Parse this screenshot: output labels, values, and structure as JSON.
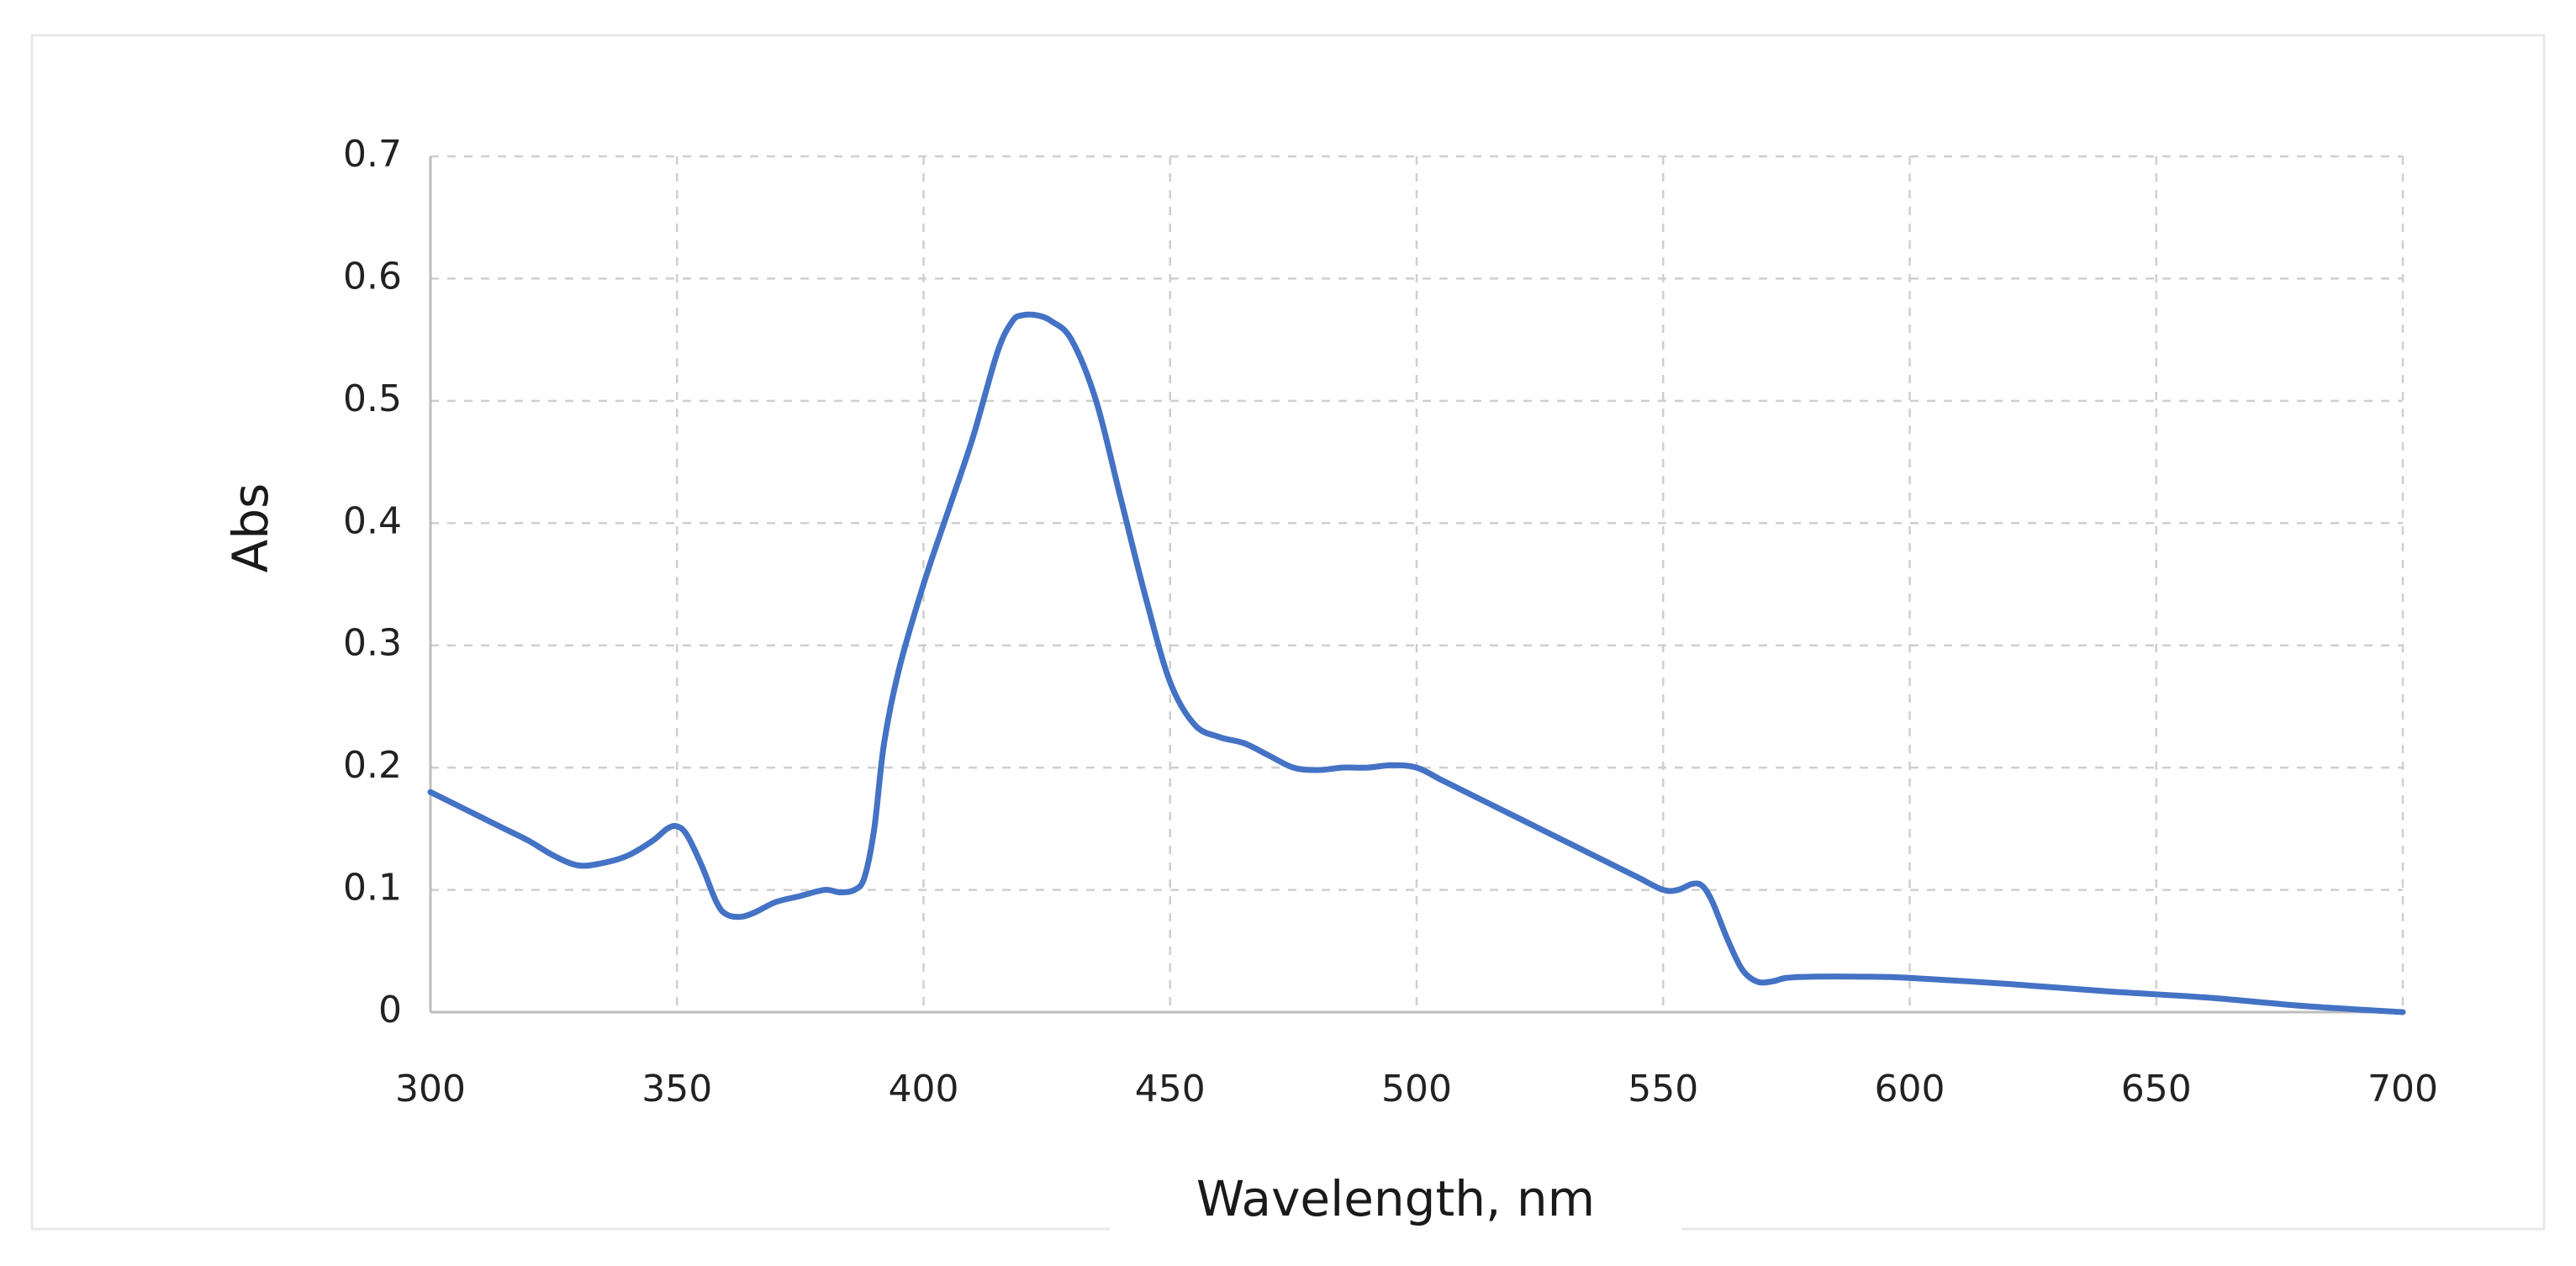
{
  "chart_data": {
    "type": "line",
    "xlabel": "Wavelength, nm",
    "ylabel": "Abs",
    "xlim": [
      300,
      700
    ],
    "ylim": [
      0,
      0.7
    ],
    "x_ticks": [
      "300",
      "350",
      "400",
      "450",
      "500",
      "550",
      "600",
      "650",
      "700"
    ],
    "y_ticks": [
      "0",
      "0.1",
      "0.2",
      "0.3",
      "0.4",
      "0.5",
      "0.6",
      "0.7"
    ],
    "grid": true,
    "line_color": "#4472C4",
    "series": [
      {
        "x": [
          300,
          305,
          310,
          315,
          320,
          325,
          330,
          335,
          340,
          345,
          348,
          350,
          352,
          355,
          358,
          360,
          363,
          366,
          370,
          375,
          380,
          383,
          386,
          388,
          390,
          392,
          395,
          400,
          405,
          410,
          415,
          418,
          420,
          423,
          426,
          430,
          435,
          440,
          445,
          450,
          455,
          460,
          465,
          470,
          475,
          480,
          485,
          490,
          495,
          500,
          505,
          510,
          520,
          530,
          540,
          545,
          550,
          553,
          556,
          558,
          560,
          563,
          566,
          569,
          572,
          575,
          580,
          590,
          600,
          620,
          640,
          660,
          680,
          700
        ],
        "y": [
          0.18,
          0.17,
          0.16,
          0.15,
          0.14,
          0.128,
          0.12,
          0.122,
          0.128,
          0.14,
          0.15,
          0.152,
          0.145,
          0.12,
          0.09,
          0.08,
          0.078,
          0.082,
          0.09,
          0.095,
          0.1,
          0.098,
          0.1,
          0.11,
          0.15,
          0.22,
          0.28,
          0.35,
          0.41,
          0.47,
          0.54,
          0.565,
          0.57,
          0.57,
          0.565,
          0.55,
          0.5,
          0.42,
          0.34,
          0.27,
          0.235,
          0.225,
          0.22,
          0.21,
          0.2,
          0.198,
          0.2,
          0.2,
          0.202,
          0.2,
          0.19,
          0.18,
          0.16,
          0.14,
          0.12,
          0.11,
          0.1,
          0.1,
          0.105,
          0.103,
          0.09,
          0.06,
          0.035,
          0.025,
          0.025,
          0.028,
          0.029,
          0.029,
          0.028,
          0.023,
          0.017,
          0.012,
          0.005,
          0.0
        ]
      }
    ]
  }
}
